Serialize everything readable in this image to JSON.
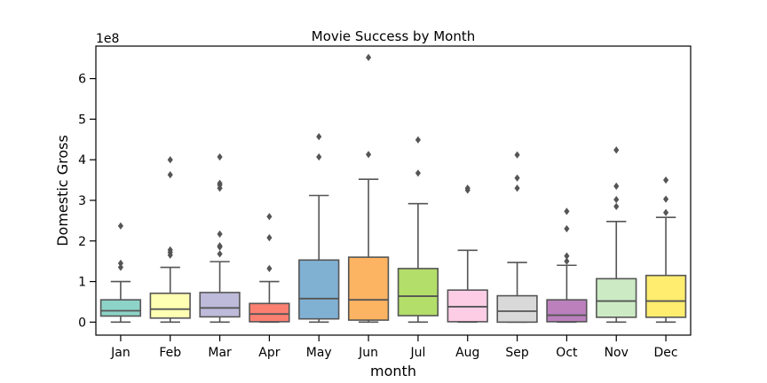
{
  "chart_data": {
    "type": "box",
    "title": "Movie Success by Month",
    "xlabel": "month",
    "ylabel": "Domestic Gross",
    "y_offset_label": "1e8",
    "y_ticks": [
      0,
      1,
      2,
      3,
      4,
      5,
      6
    ],
    "ylim": [
      -0.32,
      6.8
    ],
    "y_unit_note": "values in units of 1e8",
    "grid": false,
    "categories": [
      "Jan",
      "Feb",
      "Mar",
      "Apr",
      "May",
      "Jun",
      "Jul",
      "Aug",
      "Sep",
      "Oct",
      "Nov",
      "Dec"
    ],
    "colors": [
      "#8dd3c7",
      "#ffffb3",
      "#bebada",
      "#fb8072",
      "#80b1d3",
      "#fdb462",
      "#b3de69",
      "#fccde5",
      "#d9d9d9",
      "#bc80bd",
      "#ccebc5",
      "#ffed6f"
    ],
    "boxes": [
      {
        "min": 0.0,
        "q1": 0.15,
        "median": 0.28,
        "q3": 0.55,
        "max": 1.0,
        "outliers": [
          1.35,
          1.45,
          2.37
        ]
      },
      {
        "min": 0.0,
        "q1": 0.1,
        "median": 0.32,
        "q3": 0.71,
        "max": 1.35,
        "outliers": [
          1.65,
          1.72,
          1.78,
          3.63,
          4.0
        ]
      },
      {
        "min": 0.0,
        "q1": 0.13,
        "median": 0.35,
        "q3": 0.73,
        "max": 1.49,
        "outliers": [
          1.68,
          1.85,
          1.88,
          2.17,
          3.3,
          3.38,
          3.42,
          4.07
        ]
      },
      {
        "min": 0.0,
        "q1": 0.01,
        "median": 0.2,
        "q3": 0.46,
        "max": 1.0,
        "outliers": [
          1.32,
          2.08,
          2.6
        ]
      },
      {
        "min": 0.0,
        "q1": 0.08,
        "median": 0.58,
        "q3": 1.53,
        "max": 3.12,
        "outliers": [
          4.07,
          4.57
        ]
      },
      {
        "min": 0.0,
        "q1": 0.05,
        "median": 0.55,
        "q3": 1.6,
        "max": 3.52,
        "outliers": [
          4.13,
          6.52
        ]
      },
      {
        "min": 0.0,
        "q1": 0.16,
        "median": 0.64,
        "q3": 1.32,
        "max": 2.92,
        "outliers": [
          3.67,
          4.49
        ]
      },
      {
        "min": 0.0,
        "q1": 0.01,
        "median": 0.38,
        "q3": 0.79,
        "max": 1.77,
        "outliers": [
          3.25,
          3.3
        ]
      },
      {
        "min": 0.0,
        "q1": 0.0,
        "median": 0.27,
        "q3": 0.65,
        "max": 1.47,
        "outliers": [
          3.3,
          3.55,
          4.12
        ]
      },
      {
        "min": 0.0,
        "q1": 0.01,
        "median": 0.17,
        "q3": 0.55,
        "max": 1.4,
        "outliers": [
          1.5,
          1.63,
          2.3,
          2.73
        ]
      },
      {
        "min": 0.0,
        "q1": 0.12,
        "median": 0.52,
        "q3": 1.07,
        "max": 2.48,
        "outliers": [
          2.85,
          3.02,
          3.35,
          4.24
        ]
      },
      {
        "min": 0.0,
        "q1": 0.12,
        "median": 0.52,
        "q3": 1.15,
        "max": 2.58,
        "outliers": [
          2.7,
          3.03,
          3.5
        ]
      }
    ]
  }
}
